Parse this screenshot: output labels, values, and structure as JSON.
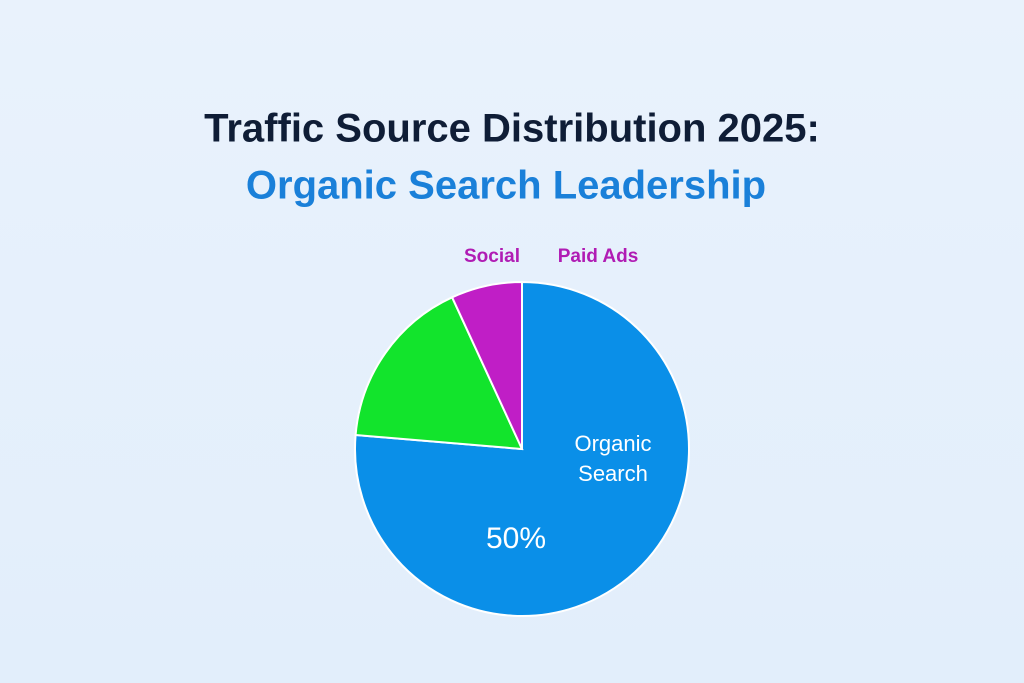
{
  "chart_data": {
    "type": "pie",
    "title": "Traffic Source Distribution 2025:",
    "subtitle": "Organic Search Leadership",
    "categories": [
      "Organic Search",
      "Paid Ads",
      "Social"
    ],
    "values": [
      50,
      11,
      4.5
    ],
    "value_labels": [
      "50%",
      null,
      null
    ],
    "colors": [
      "#0a8fe8",
      "#12e42c",
      "#c01ec6"
    ]
  }
}
